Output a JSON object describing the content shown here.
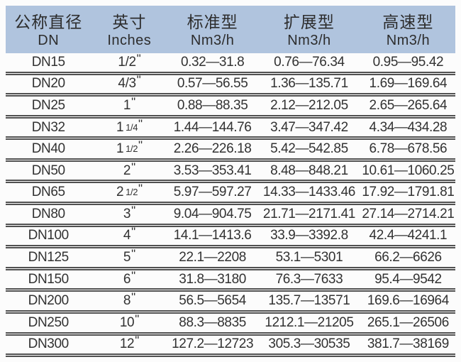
{
  "colors": {
    "header_bg": "#b0c4de",
    "divider": "#515151",
    "text": "#323232"
  },
  "table": {
    "unit_mark": "\"",
    "columns": [
      {
        "zh": "公称直径",
        "en": "DN"
      },
      {
        "zh": "英寸",
        "en": "Inches"
      },
      {
        "zh": "标准型",
        "en": "Nm3/h"
      },
      {
        "zh": "扩展型",
        "en": "Nm3/h"
      },
      {
        "zh": "高速型",
        "en": "Nm3/h"
      }
    ],
    "rows": [
      {
        "dn": "DN15",
        "inch_main": "1/2",
        "inch_sub": "",
        "standard": "0.32—31.8",
        "extended": "0.76—76.34",
        "high_speed": "0.95—95.42"
      },
      {
        "dn": "DN20",
        "inch_main": "4/3",
        "inch_sub": "",
        "standard": "0.57—56.55",
        "extended": "1.36—135.71",
        "high_speed": "1.69—169.64"
      },
      {
        "dn": "DN25",
        "inch_main": "1",
        "inch_sub": "",
        "standard": "0.88—88.35",
        "extended": "2.12—212.05",
        "high_speed": "2.65—265.64"
      },
      {
        "dn": "DN32",
        "inch_main": "1",
        "inch_sub": "1/4",
        "standard": "1.44—144.76",
        "extended": "3.47—347.42",
        "high_speed": "4.34—434.28"
      },
      {
        "dn": "DN40",
        "inch_main": "1",
        "inch_sub": "1/2",
        "standard": "2.26—226.18",
        "extended": "5.42—542.85",
        "high_speed": "6.78—678.56"
      },
      {
        "dn": "DN50",
        "inch_main": "2",
        "inch_sub": "",
        "standard": "3.53—353.41",
        "extended": "8.48—848.21",
        "high_speed": "10.61—1060.25"
      },
      {
        "dn": "DN65",
        "inch_main": "2",
        "inch_sub": "1/2",
        "standard": "5.97—597.27",
        "extended": "14.33—1433.46",
        "high_speed": "17.92—1791.81"
      },
      {
        "dn": "DN80",
        "inch_main": "3",
        "inch_sub": "",
        "standard": "9.04—904.75",
        "extended": "21.71—2171.41",
        "high_speed": "27.14—2714.21"
      },
      {
        "dn": "DN100",
        "inch_main": "4",
        "inch_sub": "",
        "standard": "14.1—1413.6",
        "extended": "33.9—3392.8",
        "high_speed": "42.4—4241.1"
      },
      {
        "dn": "DN125",
        "inch_main": "5",
        "inch_sub": "",
        "standard": "22.1—2208",
        "extended": "53.1—5301",
        "high_speed": "66.2—6626"
      },
      {
        "dn": "DN150",
        "inch_main": "6",
        "inch_sub": "",
        "standard": "31.8—3180",
        "extended": "76.3—7633",
        "high_speed": "95.4—9542"
      },
      {
        "dn": "DN200",
        "inch_main": "8",
        "inch_sub": "",
        "standard": "56.5—5654",
        "extended": "135.7—13571",
        "high_speed": "169.6—16964"
      },
      {
        "dn": "DN250",
        "inch_main": "10",
        "inch_sub": "",
        "standard": "88.3—8835",
        "extended": "1212.1—21205",
        "high_speed": "265.1—26506"
      },
      {
        "dn": "DN300",
        "inch_main": "12",
        "inch_sub": "",
        "standard": "127.2—12723",
        "extended": "305.3—30535",
        "high_speed": "381.7—38169"
      }
    ]
  }
}
